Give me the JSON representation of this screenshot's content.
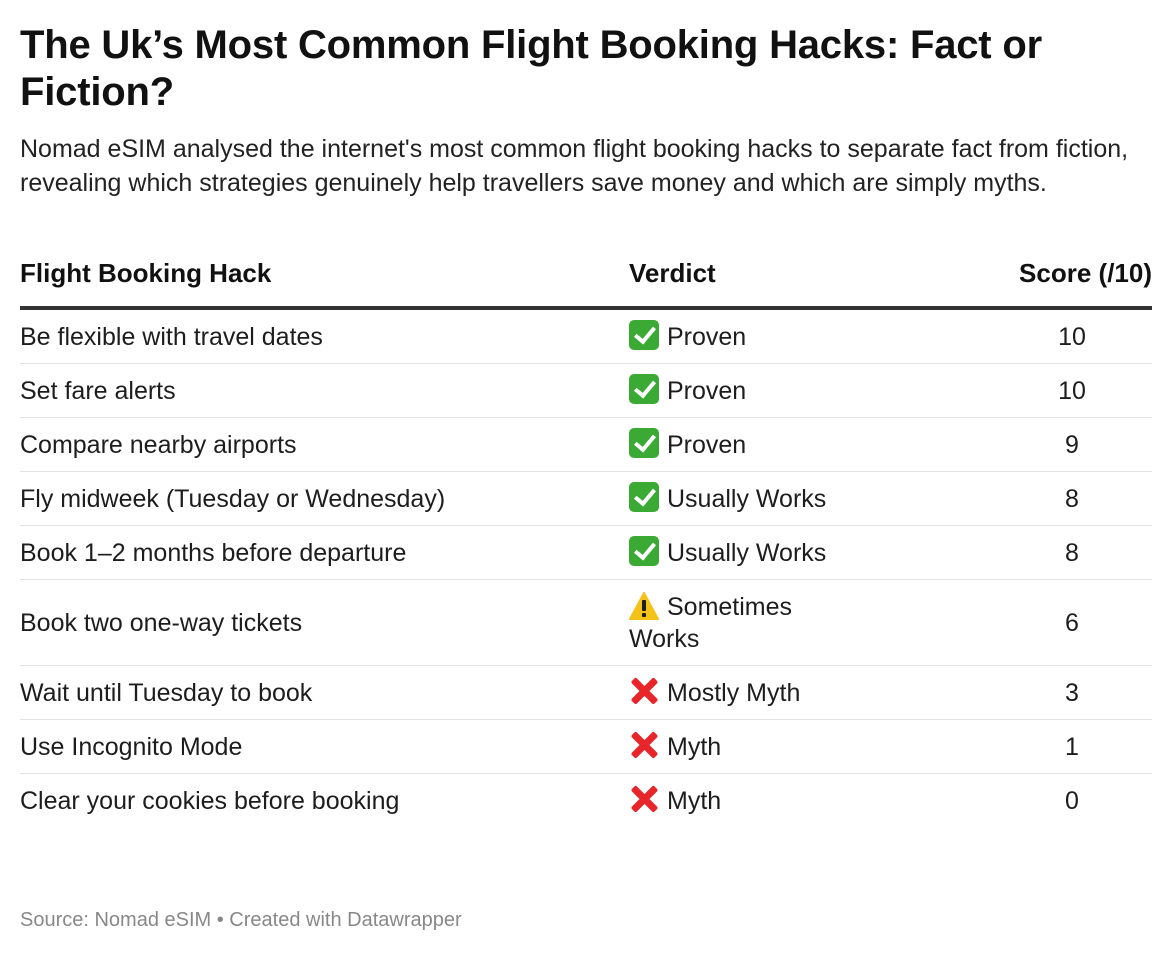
{
  "title": "The Uk’s Most Common Flight Booking Hacks: Fact or Fiction?",
  "subtitle": "Nomad eSIM analysed the internet's most common flight booking hacks to separate fact from fiction, revealing which strategies genuinely help travellers save money and which are simply myths.",
  "source": "Source: Nomad eSIM • Created with Datawrapper",
  "colors": {
    "proven_check": "#3aaa35",
    "myth_cross": "#e8262a",
    "warning": "#f4c21b",
    "header_rule": "#333333",
    "row_rule": "#e3e3e3",
    "source_text": "#888888"
  },
  "chart_data": {
    "type": "table",
    "columns": [
      "Flight Booking Hack",
      "Verdict",
      "Score (/10)"
    ],
    "rows": [
      {
        "hack": "Be flexible with travel dates",
        "verdict_icon": "check-mark-icon",
        "verdict": "Proven",
        "score": "10"
      },
      {
        "hack": "Set fare alerts",
        "verdict_icon": "check-mark-icon",
        "verdict": "Proven",
        "score": "10"
      },
      {
        "hack": "Compare nearby airports",
        "verdict_icon": "check-mark-icon",
        "verdict": "Proven",
        "score": "9"
      },
      {
        "hack": "Fly midweek (Tuesday or Wednesday)",
        "verdict_icon": "check-mark-icon",
        "verdict": "Usually Works",
        "score": "8"
      },
      {
        "hack": "Book 1–2 months before departure",
        "verdict_icon": "check-mark-icon",
        "verdict": "Usually Works",
        "score": "8"
      },
      {
        "hack": "Book two one-way tickets",
        "verdict_icon": "warning-icon",
        "verdict": "Sometimes Works",
        "score": "6"
      },
      {
        "hack": "Wait until Tuesday to book",
        "verdict_icon": "cross-mark-icon",
        "verdict": "Mostly Myth",
        "score": "3"
      },
      {
        "hack": "Use Incognito Mode",
        "verdict_icon": "cross-mark-icon",
        "verdict": "Myth",
        "score": "1"
      },
      {
        "hack": "Clear your cookies before booking",
        "verdict_icon": "cross-mark-icon",
        "verdict": "Myth",
        "score": "0"
      }
    ]
  }
}
